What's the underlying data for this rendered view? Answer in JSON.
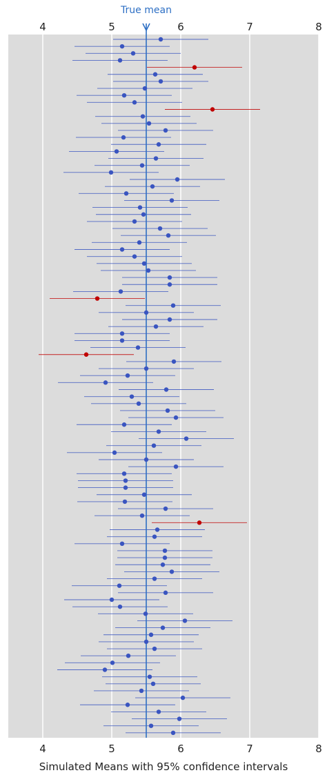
{
  "chart_data": {
    "type": "scatter",
    "xlabel": "Simulated Means with 95% confidence intervals",
    "ylabel": "",
    "xlim": [
      3.5,
      8
    ],
    "xticks": [
      4,
      5,
      6,
      7,
      8
    ],
    "grid": true,
    "true_mean": 5.5,
    "true_mean_label": "True mean",
    "colors": {
      "covered": "#3a55c0",
      "missed": "#c00000",
      "true_mean_line": "#2d6fc4",
      "plot_background": "#dcdcdc",
      "grid": "#ffffff"
    },
    "half_width": 0.69,
    "means": [
      5.71,
      5.15,
      5.31,
      5.12,
      6.2,
      5.63,
      5.71,
      5.48,
      5.18,
      5.33,
      6.46,
      5.45,
      5.54,
      5.78,
      5.17,
      5.68,
      5.07,
      5.64,
      5.44,
      4.99,
      5.95,
      5.59,
      5.21,
      5.87,
      5.41,
      5.46,
      5.33,
      5.7,
      5.82,
      5.4,
      5.15,
      5.33,
      5.47,
      5.53,
      5.84,
      5.84,
      5.13,
      4.79,
      5.89,
      5.5,
      5.84,
      5.64,
      5.15,
      5.15,
      5.38,
      4.63,
      5.9,
      5.5,
      5.23,
      4.91,
      5.79,
      5.29,
      5.39,
      5.81,
      5.93,
      5.18,
      5.68,
      6.08,
      5.61,
      5.04,
      5.5,
      5.93,
      5.18,
      5.2,
      5.2,
      5.47,
      5.19,
      5.78,
      5.44,
      6.27,
      5.66,
      5.62,
      5.15,
      5.77,
      5.77,
      5.74,
      5.87,
      5.62,
      5.11,
      5.78,
      5.0,
      5.12,
      5.49,
      6.06,
      5.74,
      5.57,
      5.5,
      5.62,
      5.24,
      5.01,
      4.9,
      5.55,
      5.6,
      5.43,
      6.03,
      5.23,
      5.68,
      5.98,
      5.57,
      5.89
    ],
    "missed_indices": [
      4,
      10,
      37,
      45,
      69
    ]
  }
}
